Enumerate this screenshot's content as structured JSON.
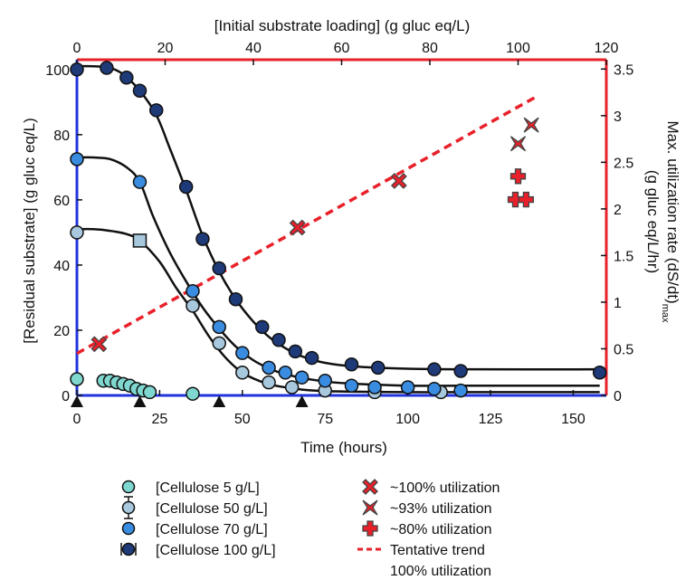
{
  "chart_data": {
    "type": "scatter",
    "title": "",
    "xlabel": "Time (hours)",
    "ylabel": "[Residual substrate] (g gluc eq/L)",
    "x2label": "[Initial substrate loading] (g gluc eq/L)",
    "y2label_line1": "Max. utilization rate (dS/dt)",
    "y2label_sub": "max",
    "y2label_line2": "(g gluc  eq/L/hr)",
    "xlim": [
      0,
      160
    ],
    "ylim": [
      0,
      103
    ],
    "x2lim": [
      0,
      120
    ],
    "y2lim": [
      0,
      3.6
    ],
    "xticks": [
      0,
      25,
      50,
      75,
      100,
      125,
      150
    ],
    "yticks": [
      0,
      20,
      40,
      60,
      80,
      100
    ],
    "x2ticks": [
      0,
      20,
      40,
      60,
      80,
      100,
      120
    ],
    "y2ticks": [
      0,
      0.5,
      1,
      1.5,
      2,
      2.5,
      3,
      3.5
    ],
    "feeding_times": [
      0,
      19,
      43,
      68
    ],
    "substrate_series": [
      {
        "name": "[Cellulose 5 g/L]",
        "color": "#7fd8d0",
        "x": [
          0,
          8,
          10,
          12,
          14,
          16,
          18,
          20,
          22,
          35
        ],
        "y": [
          5,
          4.5,
          4.5,
          4,
          3.5,
          3,
          2,
          1.5,
          1,
          0.5
        ]
      },
      {
        "name": "[Cellulose 50 g/L]",
        "color": "#a8c8de",
        "x": [
          0,
          19,
          35,
          43,
          50,
          58,
          65,
          75,
          90,
          110
        ],
        "y": [
          50,
          47.5,
          27.5,
          16,
          7,
          4,
          2.5,
          1.5,
          1,
          1
        ],
        "curve_x": [
          0,
          5,
          10,
          15,
          19,
          25,
          30,
          35,
          40,
          45,
          50,
          55,
          60,
          65,
          70,
          80,
          100,
          120,
          158
        ],
        "curve_y": [
          51,
          51,
          50.5,
          49.5,
          47.5,
          41,
          33,
          26,
          18,
          11.5,
          7,
          4.5,
          3,
          2.2,
          1.6,
          1.2,
          1,
          1,
          1
        ]
      },
      {
        "name": "[Cellulose 70 g/L]",
        "color": "#3a8ce0",
        "x": [
          0,
          19,
          35,
          43,
          50,
          58,
          63,
          68,
          75,
          83,
          90,
          100,
          108,
          116
        ],
        "y": [
          72.5,
          65.5,
          32,
          21,
          13,
          8.5,
          7,
          5.5,
          4.5,
          3,
          2.5,
          2.5,
          2,
          1.5
        ],
        "curve_x": [
          0,
          5,
          10,
          15,
          19,
          23,
          28,
          33,
          38,
          43,
          48,
          53,
          58,
          63,
          70,
          80,
          100,
          120,
          158
        ],
        "curve_y": [
          73,
          73,
          72.5,
          70,
          65.5,
          55,
          44,
          35,
          27,
          20.5,
          15,
          11,
          8.3,
          6.5,
          5,
          3.8,
          3,
          3,
          3
        ]
      },
      {
        "name": "[Cellulose 100 g/L]",
        "color": "#1f3a78",
        "x": [
          0,
          9,
          15,
          19,
          24,
          33,
          38,
          43,
          48,
          56,
          61,
          66,
          71,
          83,
          91,
          108,
          116,
          158
        ],
        "y": [
          100,
          100.5,
          97.5,
          93.5,
          87.5,
          64,
          48,
          39,
          29.5,
          21,
          17,
          13.5,
          11.5,
          9.5,
          8.5,
          8,
          7.5,
          7
        ],
        "curve_x": [
          0,
          5,
          10,
          14,
          19,
          24,
          28,
          33,
          38,
          43,
          48,
          53,
          58,
          63,
          68,
          75,
          85,
          100,
          120,
          158
        ],
        "curve_y": [
          101,
          101,
          100.5,
          98.5,
          93.5,
          86,
          76,
          63,
          49,
          38,
          29.5,
          23,
          18,
          14.5,
          12,
          10,
          8.8,
          8.2,
          8,
          8
        ]
      }
    ],
    "rate_series": [
      {
        "name": "~100% utilization",
        "marker": "x-cross",
        "x2": [
          5,
          50,
          73
        ],
        "y2": [
          0.55,
          1.8,
          2.3
        ]
      },
      {
        "name": "~93% utilization",
        "marker": "bowtie",
        "x2": [
          100,
          103
        ],
        "y2": [
          2.7,
          2.9
        ]
      },
      {
        "name": "~80% utilization",
        "marker": "plus",
        "x2": [
          100,
          100,
          101
        ],
        "y2": [
          2.35,
          2.1,
          2.1
        ]
      }
    ],
    "trend": {
      "name": "Tentative trend",
      "name_line2": "100% utilization",
      "x2": [
        0,
        104
      ],
      "y2": [
        0.45,
        3.2
      ],
      "color": "#e8202a"
    },
    "legend_placement": "bottom",
    "grid": false
  }
}
